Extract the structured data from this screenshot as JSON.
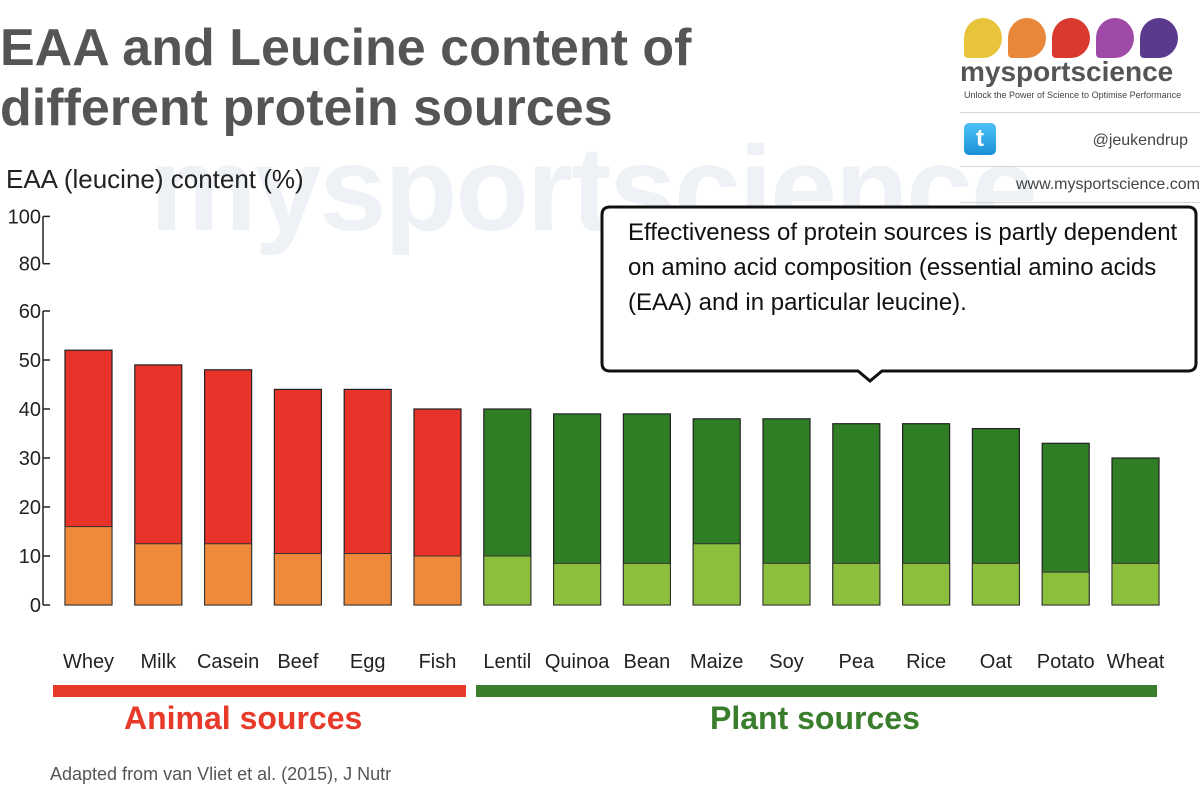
{
  "title": "EAA and Leucine content of different protein sources",
  "watermark": "mysportscience",
  "brand": {
    "name": "mysportscience",
    "tagline": "Unlock the Power of Science to Optimise Performance",
    "twitter_handle": "@jeukendrup",
    "website": "www.mysportscience.com",
    "drop_colors": [
      "#e8c43b",
      "#e8873a",
      "#d9392e",
      "#a04aa8",
      "#5a3a8c"
    ]
  },
  "callout": {
    "text": "Effectiveness of protein sources is partly dependent on amino acid composition (essential amino acids (EAA) and in particular leucine)."
  },
  "source_note": "Adapted from van Vliet et al. (2015), J Nutr",
  "groups": [
    {
      "label": "Animal sources",
      "color": "#e83a2a"
    },
    {
      "label": "Plant sources",
      "color": "#3a7d2c"
    }
  ],
  "chart_data": {
    "type": "bar",
    "ylabel": "EAA (leucine) content (%)",
    "ylim": [
      0,
      100
    ],
    "y_axis_break": [
      60,
      80
    ],
    "yticks": [
      "0",
      "10",
      "20",
      "30",
      "40",
      "50",
      "60",
      "80",
      "100"
    ],
    "categories": [
      "Whey",
      "Milk",
      "Casein",
      "Beef",
      "Egg",
      "Fish",
      "Lentil",
      "Quinoa",
      "Bean",
      "Maize",
      "Soy",
      "Pea",
      "Rice",
      "Oat",
      "Potato",
      "Wheat"
    ],
    "series": [
      {
        "name": "EAA",
        "values": [
          52,
          49,
          48,
          44,
          44,
          40,
          40,
          39,
          39,
          38,
          38,
          37,
          37,
          36,
          33,
          30
        ]
      },
      {
        "name": "Leucine",
        "values": [
          16,
          12.5,
          12.5,
          10.5,
          10.5,
          10,
          10,
          8.5,
          8.5,
          12.5,
          8.5,
          8.5,
          8.5,
          8.5,
          6.7,
          8.5
        ]
      }
    ],
    "group_of_category": [
      "animal",
      "animal",
      "animal",
      "animal",
      "animal",
      "animal",
      "plant",
      "plant",
      "plant",
      "plant",
      "plant",
      "plant",
      "plant",
      "plant",
      "plant",
      "plant"
    ],
    "colors": {
      "animal_eaa": "#e8332a",
      "animal_leucine": "#ef8a3a",
      "plant_eaa": "#2f7d24",
      "plant_leucine": "#8cbf3c"
    }
  }
}
